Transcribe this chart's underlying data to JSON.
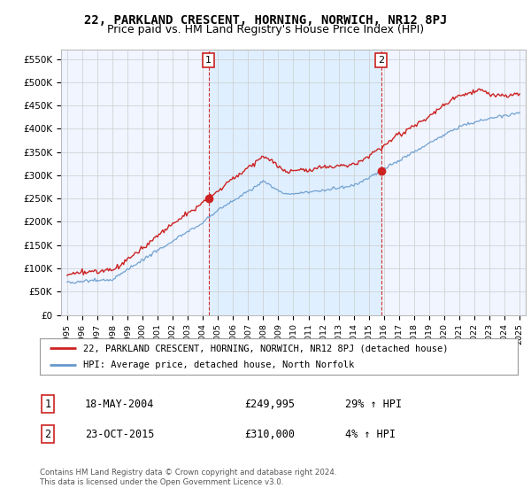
{
  "title": "22, PARKLAND CRESCENT, HORNING, NORWICH, NR12 8PJ",
  "subtitle": "Price paid vs. HM Land Registry's House Price Index (HPI)",
  "title_fontsize": 10,
  "subtitle_fontsize": 9,
  "ylabel_ticks": [
    "£0",
    "£50K",
    "£100K",
    "£150K",
    "£200K",
    "£250K",
    "£300K",
    "£350K",
    "£400K",
    "£450K",
    "£500K",
    "£550K"
  ],
  "ytick_values": [
    0,
    50000,
    100000,
    150000,
    200000,
    250000,
    300000,
    350000,
    400000,
    450000,
    500000,
    550000
  ],
  "ylim": [
    0,
    570000
  ],
  "hpi_color": "#6699cc",
  "hpi_fill_color": "#ddeeff",
  "price_color": "#cc2222",
  "shade_color": "#ddeeff",
  "sale1_date": 2004.37,
  "sale1_price": 249995,
  "sale1_label": "1",
  "sale2_date": 2015.81,
  "sale2_price": 310000,
  "sale2_label": "2",
  "legend_line1": "22, PARKLAND CRESCENT, HORNING, NORWICH, NR12 8PJ (detached house)",
  "legend_line2": "HPI: Average price, detached house, North Norfolk",
  "table_row1": [
    "1",
    "18-MAY-2004",
    "£249,995",
    "29% ↑ HPI"
  ],
  "table_row2": [
    "2",
    "23-OCT-2015",
    "£310,000",
    "4% ↑ HPI"
  ],
  "footer": "Contains HM Land Registry data © Crown copyright and database right 2024.\nThis data is licensed under the Open Government Licence v3.0.",
  "background_color": "#ffffff",
  "grid_color": "#cccccc"
}
